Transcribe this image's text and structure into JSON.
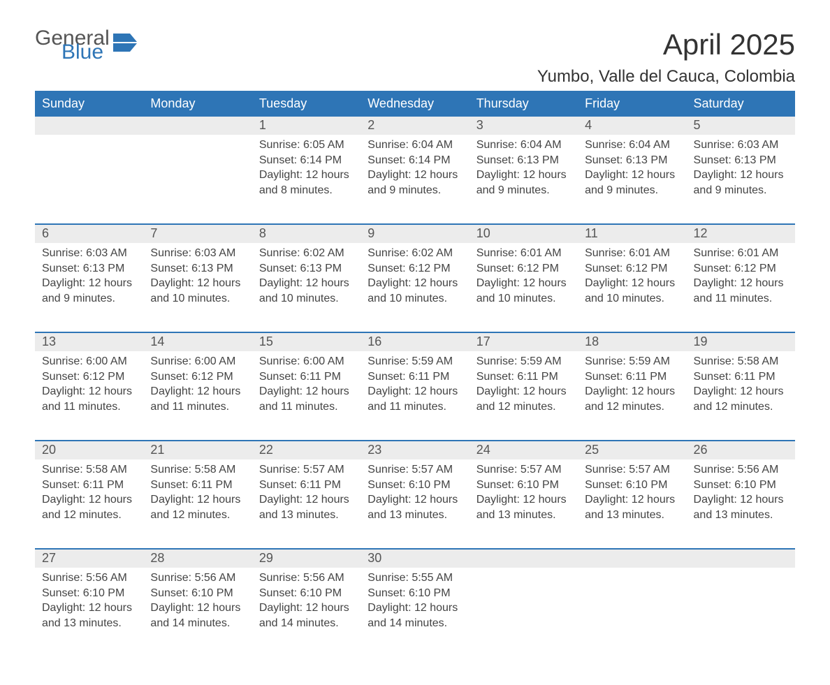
{
  "brand": {
    "word1": "General",
    "word2": "Blue"
  },
  "title": "April 2025",
  "location": "Yumbo, Valle del Cauca, Colombia",
  "colors": {
    "accent": "#2e75b6",
    "header_text": "#ffffff",
    "daynum_bg": "#ececec",
    "body_text": "#444444",
    "background": "#ffffff"
  },
  "weekdays": [
    "Sunday",
    "Monday",
    "Tuesday",
    "Wednesday",
    "Thursday",
    "Friday",
    "Saturday"
  ],
  "weeks": [
    [
      null,
      null,
      {
        "n": "1",
        "sr": "6:05 AM",
        "ss": "6:14 PM",
        "dl": "12 hours and 8 minutes."
      },
      {
        "n": "2",
        "sr": "6:04 AM",
        "ss": "6:14 PM",
        "dl": "12 hours and 9 minutes."
      },
      {
        "n": "3",
        "sr": "6:04 AM",
        "ss": "6:13 PM",
        "dl": "12 hours and 9 minutes."
      },
      {
        "n": "4",
        "sr": "6:04 AM",
        "ss": "6:13 PM",
        "dl": "12 hours and 9 minutes."
      },
      {
        "n": "5",
        "sr": "6:03 AM",
        "ss": "6:13 PM",
        "dl": "12 hours and 9 minutes."
      }
    ],
    [
      {
        "n": "6",
        "sr": "6:03 AM",
        "ss": "6:13 PM",
        "dl": "12 hours and 9 minutes."
      },
      {
        "n": "7",
        "sr": "6:03 AM",
        "ss": "6:13 PM",
        "dl": "12 hours and 10 minutes."
      },
      {
        "n": "8",
        "sr": "6:02 AM",
        "ss": "6:13 PM",
        "dl": "12 hours and 10 minutes."
      },
      {
        "n": "9",
        "sr": "6:02 AM",
        "ss": "6:12 PM",
        "dl": "12 hours and 10 minutes."
      },
      {
        "n": "10",
        "sr": "6:01 AM",
        "ss": "6:12 PM",
        "dl": "12 hours and 10 minutes."
      },
      {
        "n": "11",
        "sr": "6:01 AM",
        "ss": "6:12 PM",
        "dl": "12 hours and 10 minutes."
      },
      {
        "n": "12",
        "sr": "6:01 AM",
        "ss": "6:12 PM",
        "dl": "12 hours and 11 minutes."
      }
    ],
    [
      {
        "n": "13",
        "sr": "6:00 AM",
        "ss": "6:12 PM",
        "dl": "12 hours and 11 minutes."
      },
      {
        "n": "14",
        "sr": "6:00 AM",
        "ss": "6:12 PM",
        "dl": "12 hours and 11 minutes."
      },
      {
        "n": "15",
        "sr": "6:00 AM",
        "ss": "6:11 PM",
        "dl": "12 hours and 11 minutes."
      },
      {
        "n": "16",
        "sr": "5:59 AM",
        "ss": "6:11 PM",
        "dl": "12 hours and 11 minutes."
      },
      {
        "n": "17",
        "sr": "5:59 AM",
        "ss": "6:11 PM",
        "dl": "12 hours and 12 minutes."
      },
      {
        "n": "18",
        "sr": "5:59 AM",
        "ss": "6:11 PM",
        "dl": "12 hours and 12 minutes."
      },
      {
        "n": "19",
        "sr": "5:58 AM",
        "ss": "6:11 PM",
        "dl": "12 hours and 12 minutes."
      }
    ],
    [
      {
        "n": "20",
        "sr": "5:58 AM",
        "ss": "6:11 PM",
        "dl": "12 hours and 12 minutes."
      },
      {
        "n": "21",
        "sr": "5:58 AM",
        "ss": "6:11 PM",
        "dl": "12 hours and 12 minutes."
      },
      {
        "n": "22",
        "sr": "5:57 AM",
        "ss": "6:11 PM",
        "dl": "12 hours and 13 minutes."
      },
      {
        "n": "23",
        "sr": "5:57 AM",
        "ss": "6:10 PM",
        "dl": "12 hours and 13 minutes."
      },
      {
        "n": "24",
        "sr": "5:57 AM",
        "ss": "6:10 PM",
        "dl": "12 hours and 13 minutes."
      },
      {
        "n": "25",
        "sr": "5:57 AM",
        "ss": "6:10 PM",
        "dl": "12 hours and 13 minutes."
      },
      {
        "n": "26",
        "sr": "5:56 AM",
        "ss": "6:10 PM",
        "dl": "12 hours and 13 minutes."
      }
    ],
    [
      {
        "n": "27",
        "sr": "5:56 AM",
        "ss": "6:10 PM",
        "dl": "12 hours and 13 minutes."
      },
      {
        "n": "28",
        "sr": "5:56 AM",
        "ss": "6:10 PM",
        "dl": "12 hours and 14 minutes."
      },
      {
        "n": "29",
        "sr": "5:56 AM",
        "ss": "6:10 PM",
        "dl": "12 hours and 14 minutes."
      },
      {
        "n": "30",
        "sr": "5:55 AM",
        "ss": "6:10 PM",
        "dl": "12 hours and 14 minutes."
      },
      null,
      null,
      null
    ]
  ],
  "labels": {
    "sunrise": "Sunrise:",
    "sunset": "Sunset:",
    "daylight": "Daylight:"
  }
}
